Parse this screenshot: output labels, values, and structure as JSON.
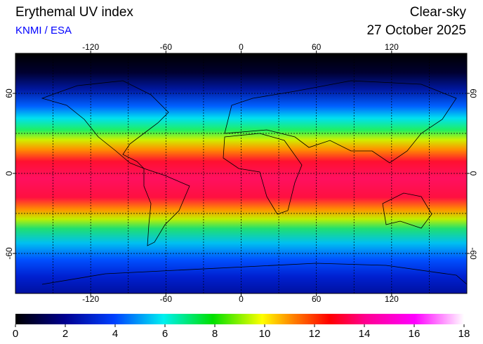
{
  "title": "Erythemal UV index",
  "source": "KNMI / ESA",
  "mode": "Clear-sky",
  "date": "27 October 2025",
  "map": {
    "xlim": [
      -180,
      180
    ],
    "ylim": [
      -90,
      90
    ],
    "xticks": [
      -120,
      -60,
      0,
      60,
      120
    ],
    "yticks": [
      -60,
      0,
      60
    ]
  },
  "colorbar": {
    "lim": [
      0,
      18
    ],
    "ticks": [
      0,
      2,
      4,
      6,
      8,
      10,
      12,
      14,
      16,
      18
    ]
  }
}
